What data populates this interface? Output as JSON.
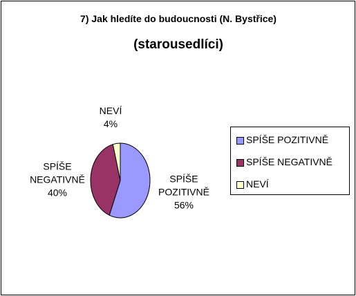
{
  "chart_data": {
    "type": "pie",
    "title": "7) Jak hledíte do budoucnosti (N. Bystřice)",
    "subtitle": "(starousedlíci)",
    "categories": [
      "SPÍŠE POZITIVNĚ",
      "SPÍŠE NEGATIVNĚ",
      "NEVÍ"
    ],
    "values": [
      56,
      40,
      4
    ],
    "value_labels": [
      "56%",
      "40%",
      "4%"
    ],
    "colors": [
      "#9999ff",
      "#993366",
      "#ffffcc"
    ],
    "legend": "right"
  }
}
